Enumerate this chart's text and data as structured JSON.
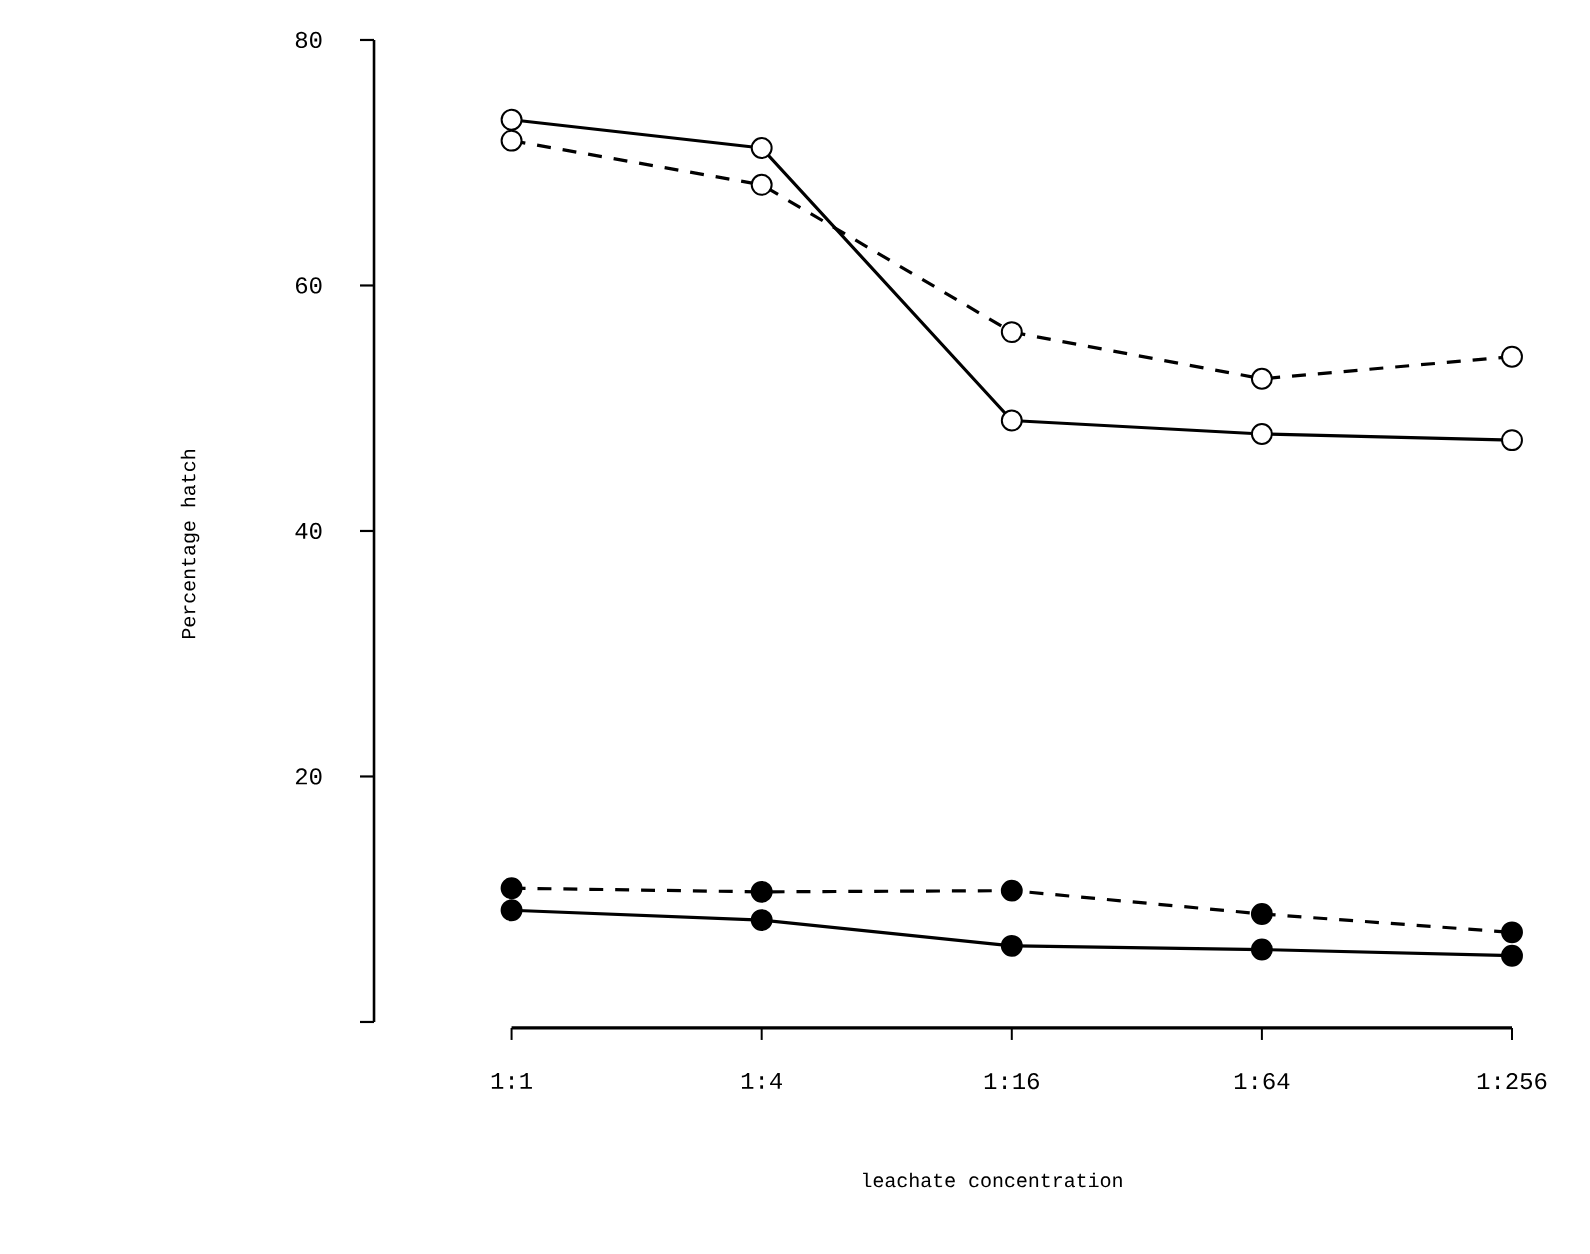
{
  "chart_data": {
    "type": "line",
    "xlabel": "leachate concentration",
    "ylabel": "Percentage hatch",
    "categories": [
      "1:1",
      "1:4",
      "1:16",
      "1:64",
      "1:256"
    ],
    "ylim": [
      0,
      80
    ],
    "yticks": [
      {
        "value": 0,
        "label": null
      },
      20,
      40,
      60,
      80
    ],
    "legend": false,
    "series": [
      {
        "color": "#000000",
        "marker": "circle open",
        "line_style": "solid",
        "values": [
          73.5,
          71.2,
          49.0,
          47.9,
          47.4
        ]
      },
      {
        "color": "#000000",
        "marker": "circle open",
        "line_style": "dashed",
        "values": [
          71.8,
          68.2,
          56.2,
          52.4,
          54.2
        ]
      },
      {
        "color": "#000000",
        "marker": "circle",
        "line_style": "dashed",
        "values": [
          10.9,
          10.6,
          10.7,
          8.8,
          7.3
        ]
      },
      {
        "color": "#000000",
        "marker": "circle",
        "line_style": "solid",
        "values": [
          9.1,
          8.3,
          6.2,
          5.9,
          5.4
        ]
      }
    ]
  }
}
